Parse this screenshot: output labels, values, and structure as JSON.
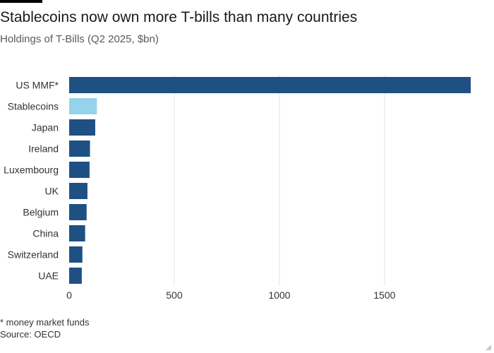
{
  "header": {
    "title": "Stablecoins now own more T-bills than many countries",
    "subtitle": "Holdings of T-Bills (Q2 2025, $bn)"
  },
  "footer": {
    "footnote": "* money market funds",
    "source": "Source: OECD"
  },
  "colors": {
    "primary_bar": "#1f5083",
    "highlight_bar": "#96d3ea",
    "grid": "#e6e6e6",
    "axis_text": "#333333"
  },
  "chart_data": {
    "type": "bar",
    "orientation": "horizontal",
    "title": "Stablecoins now own more T-bills than many countries",
    "subtitle": "Holdings of T-Bills (Q2 2025, $bn)",
    "xlabel": "",
    "ylabel": "",
    "categories": [
      "US MMF*",
      "Stablecoins",
      "Japan",
      "Ireland",
      "Luxembourg",
      "UK",
      "Belgium",
      "China",
      "Switzerland",
      "UAE"
    ],
    "values": [
      1910,
      132,
      124,
      99,
      97,
      87,
      83,
      76,
      63,
      60
    ],
    "highlight": "Stablecoins",
    "xlim": [
      0,
      1910
    ],
    "xticks": [
      0,
      500,
      1000,
      1500
    ],
    "grid": true
  }
}
